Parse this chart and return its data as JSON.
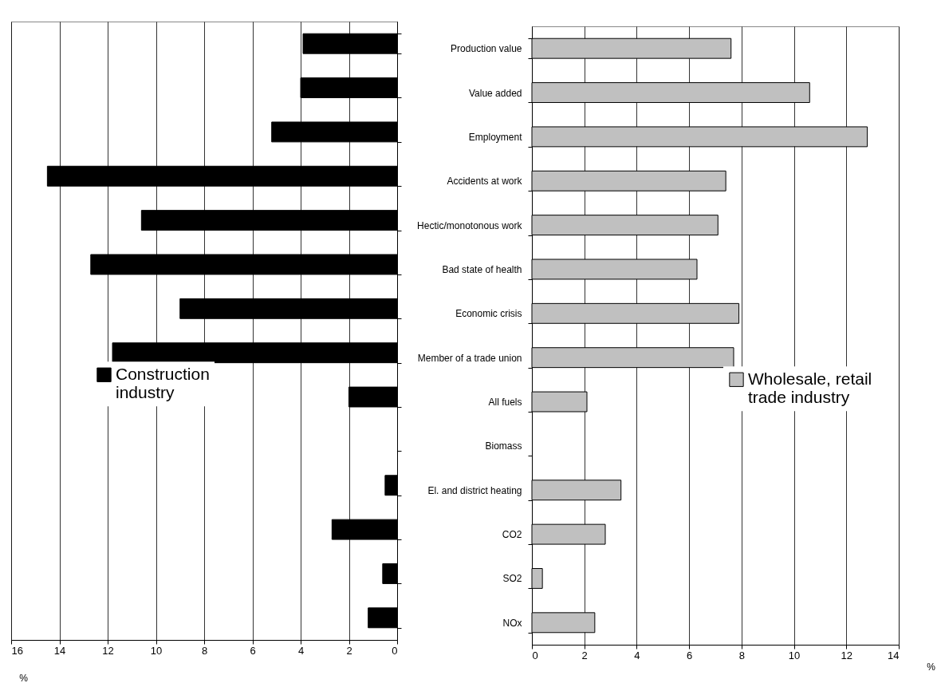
{
  "chart_data": [
    {
      "type": "bar",
      "orientation": "horizontal",
      "xlabel": "%",
      "categories": [
        null,
        null,
        null,
        null,
        null,
        null,
        null,
        null,
        null,
        null,
        null,
        null,
        null,
        null
      ],
      "series": [
        {
          "name": "Construction industry",
          "color": "#000000",
          "values": [
            3.9,
            4.0,
            5.2,
            14.5,
            10.6,
            12.7,
            9.0,
            11.8,
            2.0,
            null,
            0.5,
            2.7,
            0.6,
            1.2
          ]
        }
      ],
      "xlim": [
        16,
        0
      ],
      "xticks": [
        16,
        14,
        12,
        10,
        8,
        6,
        4,
        2,
        0
      ],
      "grid": "x",
      "legend": "left",
      "tick_labels": "x"
    },
    {
      "type": "bar",
      "orientation": "horizontal",
      "xlabel": "%",
      "categories": [
        "Production value",
        "Value added",
        "Employment",
        "Accidents at work",
        "Hectic/monotonous work",
        "Bad state of health",
        "Economic crisis",
        "Member of a trade union",
        "All fuels",
        "Biomass",
        "El. and district heating",
        "CO2",
        "SO2",
        "NOx"
      ],
      "series": [
        {
          "name": "Wholesale, retail trade industry",
          "color": "#c0c0c0",
          "values": [
            7.6,
            10.6,
            12.8,
            7.4,
            7.1,
            6.3,
            7.9,
            7.7,
            2.1,
            null,
            3.4,
            2.8,
            0.4,
            2.4
          ]
        }
      ],
      "xlim": [
        0,
        14
      ],
      "xticks": [
        0,
        2,
        4,
        6,
        8,
        10,
        12,
        14
      ],
      "grid": "x",
      "legend": "right"
    }
  ]
}
